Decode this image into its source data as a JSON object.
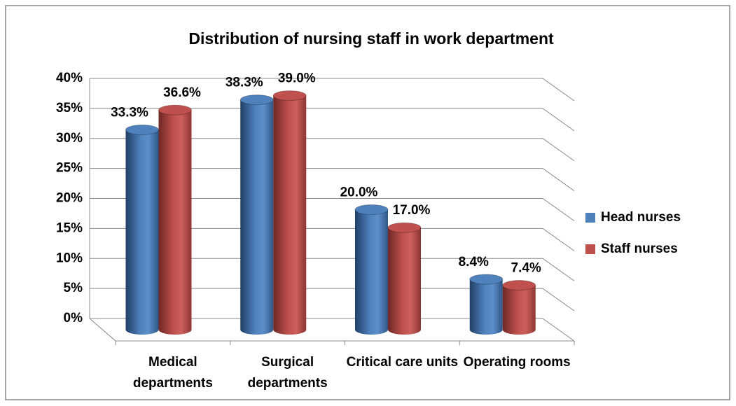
{
  "chart_data": {
    "type": "bar3d",
    "title": "Distribution of nursing staff in work department",
    "categories": [
      "Medical departments",
      "Surgical departments",
      "Critical care units",
      "Operating rooms"
    ],
    "series": [
      {
        "name": "Head nurses",
        "color": "#4f81bd",
        "values": [
          33.3,
          38.3,
          20.0,
          8.4
        ],
        "value_labels": [
          "33.3%",
          "38.3%",
          "20.0%",
          "8.4%"
        ]
      },
      {
        "name": "Staff nurses",
        "color": "#c0504d",
        "values": [
          36.6,
          39.0,
          17.0,
          7.4
        ],
        "value_labels": [
          "36.6%",
          "39.0%",
          "17.0%",
          "7.4%"
        ]
      }
    ],
    "ylim": [
      0,
      40
    ],
    "yticks": [
      {
        "value": 0,
        "label": "0%"
      },
      {
        "value": 5,
        "label": "5%"
      },
      {
        "value": 10,
        "label": "10%"
      },
      {
        "value": 15,
        "label": "15%"
      },
      {
        "value": 20,
        "label": "20%"
      },
      {
        "value": 25,
        "label": "25%"
      },
      {
        "value": 30,
        "label": "30%"
      },
      {
        "value": 35,
        "label": "35%"
      },
      {
        "value": 40,
        "label": "40%"
      }
    ],
    "grid": true,
    "legend": "right"
  }
}
